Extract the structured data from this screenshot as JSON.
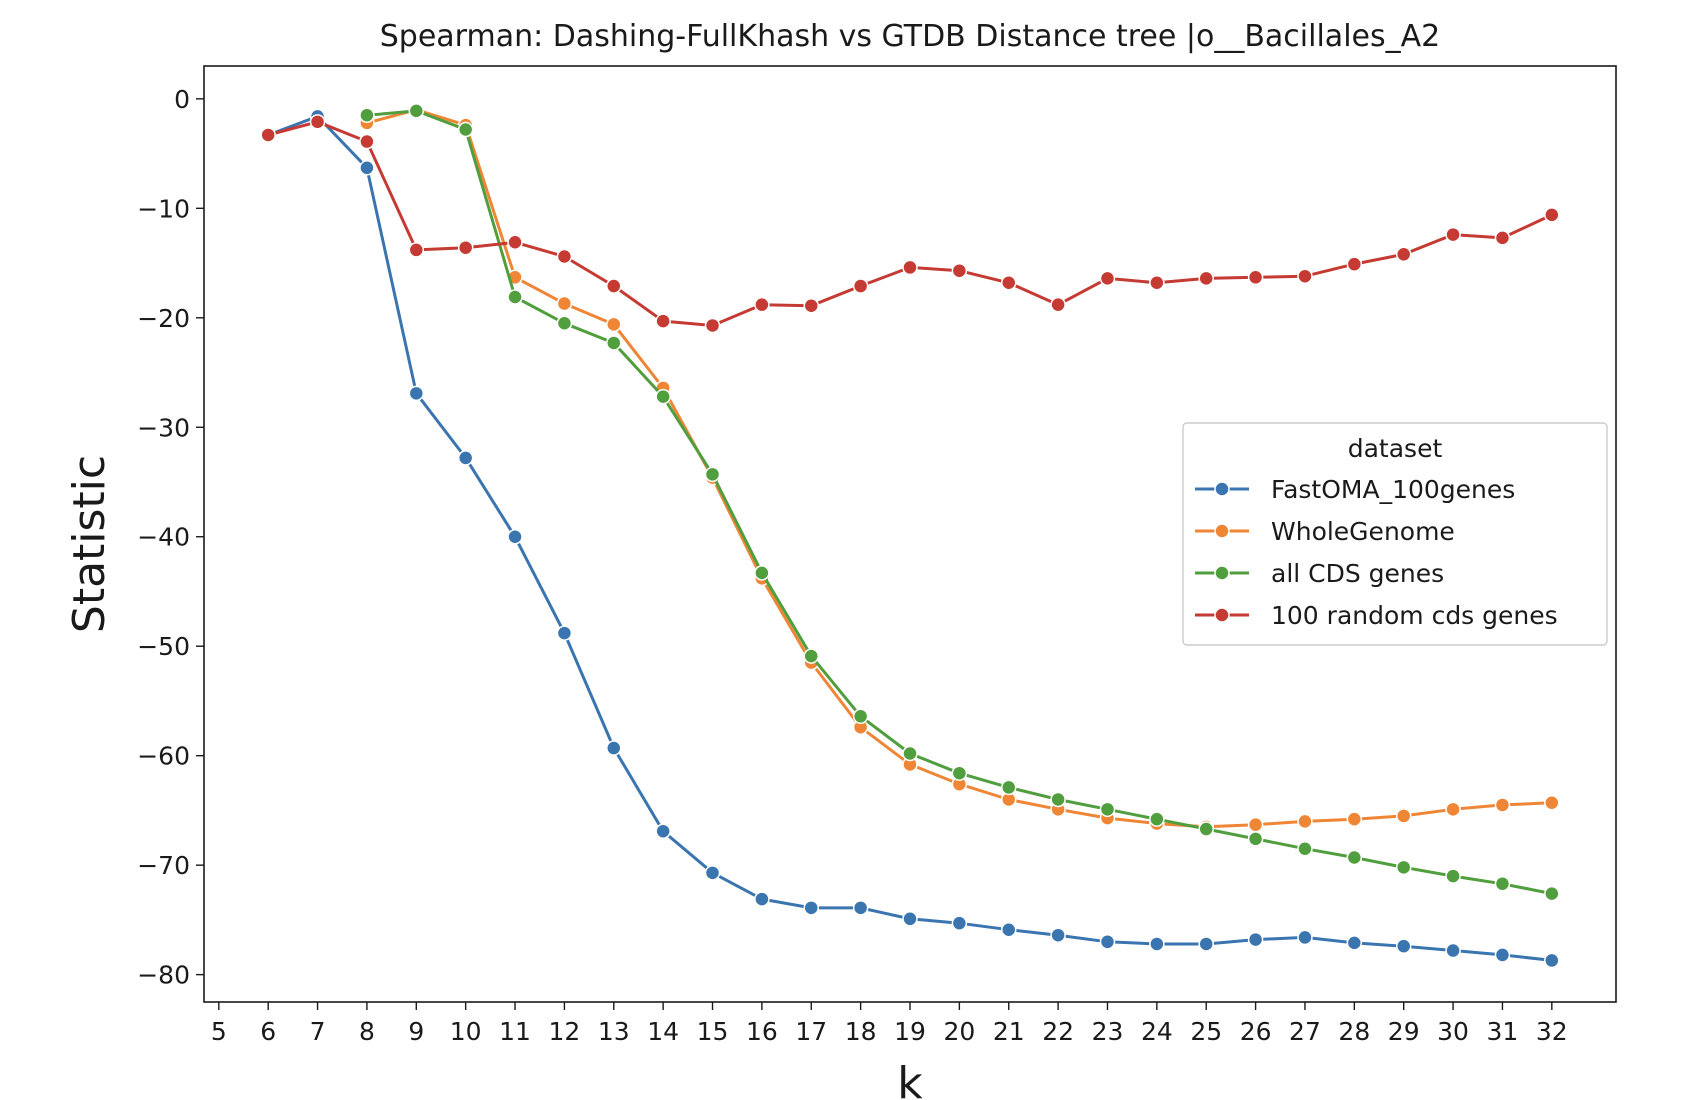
{
  "chart_data": {
    "type": "line",
    "title": "Spearman: Dashing-FullKhash vs GTDB Distance tree  |o__Bacillales_A2",
    "xlabel": "k",
    "ylabel": "Statistic",
    "xlim": [
      4.7,
      33.3
    ],
    "ylim": [
      -82.5,
      3
    ],
    "xticks": [
      5,
      6,
      7,
      8,
      9,
      10,
      11,
      12,
      13,
      14,
      15,
      16,
      17,
      18,
      19,
      20,
      21,
      22,
      23,
      24,
      25,
      26,
      27,
      28,
      29,
      30,
      31,
      32
    ],
    "yticks": [
      0,
      -10,
      -20,
      -30,
      -40,
      -50,
      -60,
      -70,
      -80
    ],
    "ytick_labels": [
      "0",
      "−10",
      "−20",
      "−30",
      "−40",
      "−50",
      "−60",
      "−70",
      "−80"
    ],
    "grid": false,
    "legend": {
      "title": "dataset",
      "placement": "center-right"
    },
    "series": [
      {
        "name": "FastOMA_100genes",
        "color": "#3a75b0",
        "x": [
          6,
          7,
          8,
          9,
          10,
          11,
          12,
          13,
          14,
          15,
          16,
          17,
          18,
          19,
          20,
          21,
          22,
          23,
          24,
          25,
          26,
          27,
          28,
          29,
          30,
          31,
          32
        ],
        "values": [
          -3.3,
          -1.6,
          -6.3,
          -26.9,
          -32.8,
          -40.0,
          -48.8,
          -59.3,
          -66.9,
          -70.7,
          -73.1,
          -73.9,
          -73.9,
          -74.9,
          -75.3,
          -75.9,
          -76.4,
          -77.0,
          -77.2,
          -77.2,
          -76.8,
          -76.6,
          -77.1,
          -77.4,
          -77.8,
          -78.2,
          -78.7
        ]
      },
      {
        "name": "WholeGenome",
        "color": "#ef8636",
        "x": [
          8,
          9,
          10,
          11,
          12,
          13,
          14,
          15,
          16,
          17,
          18,
          19,
          20,
          21,
          22,
          23,
          24,
          25,
          26,
          27,
          28,
          29,
          30,
          31,
          32
        ],
        "values": [
          -2.2,
          -1.0,
          -2.4,
          -16.3,
          -18.7,
          -20.6,
          -26.4,
          -34.6,
          -43.8,
          -51.5,
          -57.4,
          -60.8,
          -62.6,
          -64.0,
          -64.9,
          -65.7,
          -66.2,
          -66.5,
          -66.3,
          -66.0,
          -65.8,
          -65.5,
          -64.9,
          -64.5,
          -64.3
        ]
      },
      {
        "name": "all CDS genes",
        "color": "#519e3e",
        "x": [
          8,
          9,
          10,
          11,
          12,
          13,
          14,
          15,
          16,
          17,
          18,
          19,
          20,
          21,
          22,
          23,
          24,
          25,
          26,
          27,
          28,
          29,
          30,
          31,
          32
        ],
        "values": [
          -1.5,
          -1.1,
          -2.8,
          -18.1,
          -20.5,
          -22.3,
          -27.2,
          -34.3,
          -43.3,
          -50.9,
          -56.4,
          -59.8,
          -61.6,
          -62.9,
          -64.0,
          -64.9,
          -65.8,
          -66.7,
          -67.6,
          -68.5,
          -69.3,
          -70.2,
          -71.0,
          -71.7,
          -72.6
        ]
      },
      {
        "name": "100 random cds genes",
        "color": "#c53a32",
        "x": [
          6,
          7,
          8,
          9,
          10,
          11,
          12,
          13,
          14,
          15,
          16,
          17,
          18,
          19,
          20,
          21,
          22,
          23,
          24,
          25,
          26,
          27,
          28,
          29,
          30,
          31,
          32
        ],
        "values": [
          -3.3,
          -2.1,
          -3.9,
          -13.8,
          -13.6,
          -13.1,
          -14.4,
          -17.1,
          -20.3,
          -20.7,
          -18.8,
          -18.9,
          -17.1,
          -15.4,
          -15.7,
          -16.8,
          -18.8,
          -16.4,
          -16.8,
          -16.4,
          -16.3,
          -16.2,
          -15.1,
          -14.2,
          -12.4,
          -12.7,
          -10.6
        ]
      }
    ]
  }
}
